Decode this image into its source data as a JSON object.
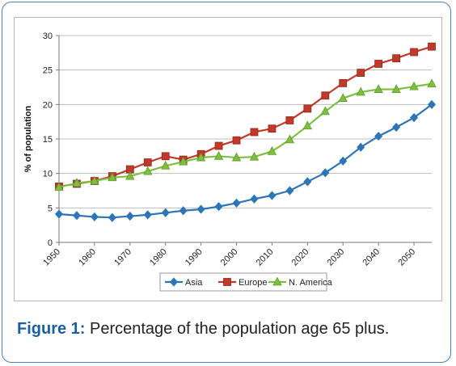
{
  "chart_data": {
    "type": "line",
    "title": "",
    "xlabel": "",
    "ylabel": "% of population",
    "ylim": [
      0,
      30
    ],
    "yticks": [
      0,
      5,
      10,
      15,
      20,
      25,
      30
    ],
    "xlim": [
      1950,
      2055
    ],
    "xticks": [
      1950,
      1960,
      1970,
      1980,
      1990,
      2000,
      2010,
      2020,
      2030,
      2040,
      2050
    ],
    "x": [
      1950,
      1955,
      1960,
      1965,
      1970,
      1975,
      1980,
      1985,
      1990,
      1995,
      2000,
      2005,
      2010,
      2015,
      2020,
      2025,
      2030,
      2035,
      2040,
      2045,
      2050,
      2055
    ],
    "grid": "horizontal",
    "legend_position": "bottom",
    "series": [
      {
        "name": "Asia",
        "color": "#2e75b6",
        "marker": "diamond",
        "values": [
          4.1,
          3.9,
          3.7,
          3.6,
          3.8,
          4.0,
          4.3,
          4.6,
          4.8,
          5.2,
          5.7,
          6.3,
          6.8,
          7.5,
          8.8,
          10.1,
          11.8,
          13.8,
          15.4,
          16.7,
          18.1,
          20.0
        ]
      },
      {
        "name": "Europe",
        "color": "#c0392b",
        "marker": "square",
        "values": [
          8.1,
          8.5,
          8.9,
          9.6,
          10.6,
          11.6,
          12.5,
          12.0,
          12.8,
          14.0,
          14.8,
          16.0,
          16.5,
          17.7,
          19.4,
          21.3,
          23.1,
          24.6,
          25.9,
          26.7,
          27.6,
          28.4
        ]
      },
      {
        "name": "N. America",
        "color": "#7fbf3f",
        "marker": "triangle",
        "values": [
          8.0,
          8.6,
          8.9,
          9.4,
          9.6,
          10.3,
          11.1,
          11.7,
          12.3,
          12.5,
          12.3,
          12.4,
          13.2,
          14.9,
          16.9,
          19.0,
          20.9,
          21.8,
          22.2,
          22.2,
          22.6,
          23.0
        ]
      }
    ]
  },
  "caption": {
    "label": "Figure 1:",
    "text": " Percentage of the population age 65 plus."
  }
}
